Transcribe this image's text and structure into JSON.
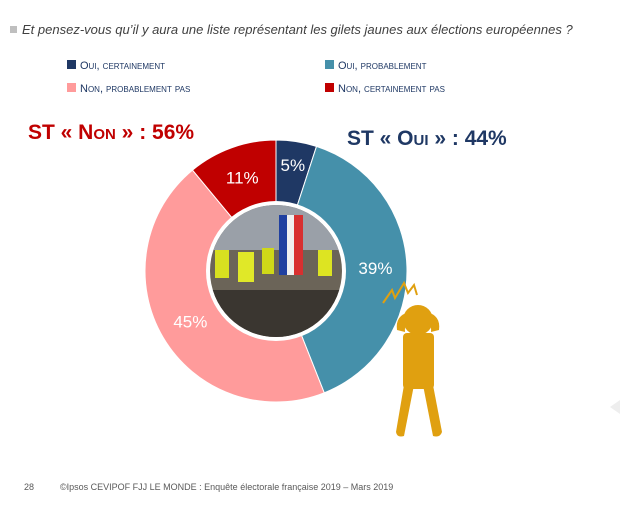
{
  "question": "Et pensez-vous qu’il y aura une liste représentant les gilets jaunes aux élections européennes ?",
  "summary": {
    "non": "ST « Non » : 56%",
    "oui": "ST « Oui » : 44%"
  },
  "footer": {
    "page": "28",
    "source": "©Ipsos  CEVIPOF FJJ LE MONDE : Enquête électorale française 2019 – Mars 2019"
  },
  "colors": {
    "oui_cert": "#1f3864",
    "oui_prob": "#4590aa",
    "non_prob": "#ff9b9b",
    "non_cert": "#c00000",
    "title_red": "#c00000",
    "title_navy": "#1f3864",
    "figure": "#e0a010"
  },
  "chart_data": {
    "type": "pie",
    "donut": true,
    "legend_position": "top",
    "series": [
      {
        "name": "Oui, certainement",
        "value": 5,
        "label": "5%"
      },
      {
        "name": "Oui, probablement",
        "value": 39,
        "label": "39%"
      },
      {
        "name": "Non, probablement pas",
        "value": 45,
        "label": "45%"
      },
      {
        "name": "Non, certainement pas",
        "value": 11,
        "label": "11%"
      }
    ]
  }
}
